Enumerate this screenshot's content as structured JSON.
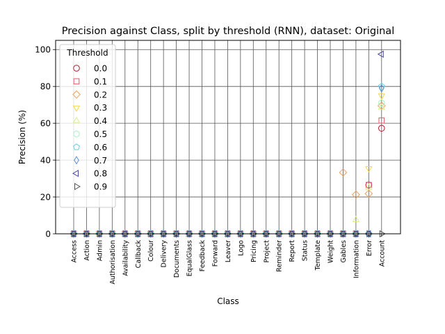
{
  "chart_data": {
    "type": "scatter",
    "title": "Precision against Class, split by threshold (RNN), dataset: Original",
    "xlabel": "Class",
    "ylabel": "Precision (%)",
    "ylim": [
      0,
      105
    ],
    "yticks": [
      0,
      20,
      40,
      60,
      80,
      100
    ],
    "grid": true,
    "legend_title": "Threshold",
    "legend_position": "upper-left",
    "categories": [
      "Access",
      "Action",
      "Admin",
      "Authorisation",
      "Availability",
      "Callback",
      "Colour",
      "Delivery",
      "Documents",
      "EqualGlass",
      "Feedback",
      "Forward",
      "Leaver",
      "Logo",
      "Pricing",
      "Project",
      "Reminder",
      "Report",
      "Status",
      "Template",
      "Weight",
      "Gables",
      "Information",
      "Error",
      "Account"
    ],
    "series": [
      {
        "name": "0.0",
        "marker": "circle",
        "color": "#b2182b",
        "values": [
          0,
          0,
          0,
          0,
          0,
          0,
          0,
          0,
          0,
          0,
          0,
          0,
          0,
          0,
          0,
          0,
          0,
          0,
          0,
          0,
          0,
          0,
          0,
          26.5,
          57.3
        ]
      },
      {
        "name": "0.1",
        "marker": "square",
        "color": "#e8556b",
        "values": [
          0,
          0,
          0,
          0,
          0,
          0,
          0,
          0,
          0,
          0,
          0,
          0,
          0,
          0,
          0,
          0,
          0,
          0,
          0,
          0,
          0,
          0,
          0,
          26.5,
          61.5
        ]
      },
      {
        "name": "0.2",
        "marker": "diamond",
        "color": "#f0a058",
        "values": [
          0,
          0,
          0,
          0,
          0,
          0,
          0,
          0,
          0,
          0,
          0,
          0,
          0,
          0,
          0,
          0,
          0,
          0,
          0,
          0,
          0,
          33.3,
          21.3,
          21.8,
          69.5
        ]
      },
      {
        "name": "0.3",
        "marker": "triangle-down",
        "color": "#f5d83a",
        "values": [
          0,
          0,
          0,
          0,
          0,
          0,
          0,
          0,
          0,
          0,
          0,
          0,
          0,
          0,
          0,
          0,
          0,
          0,
          0,
          0,
          0,
          0,
          0,
          35.5,
          75.0
        ]
      },
      {
        "name": "0.4",
        "marker": "triangle-up",
        "color": "#d9ef8b",
        "values": [
          0,
          0,
          0,
          0,
          0,
          0,
          0,
          0,
          0,
          0,
          0,
          0,
          0,
          0,
          0,
          0,
          0,
          0,
          0,
          0,
          0,
          0,
          7.5,
          25.0,
          68.5
        ]
      },
      {
        "name": "0.5",
        "marker": "hexagon",
        "color": "#a6f0c6",
        "values": [
          0,
          0,
          0,
          0,
          0,
          0,
          0,
          0,
          0,
          0,
          0,
          0,
          0,
          0,
          0,
          0,
          0,
          0,
          0,
          0,
          0,
          0,
          0,
          0,
          71.0
        ]
      },
      {
        "name": "0.6",
        "marker": "pentagon",
        "color": "#5fd0e8",
        "values": [
          0,
          0,
          0,
          0,
          0,
          0,
          0,
          0,
          0,
          0,
          0,
          0,
          0,
          0,
          0,
          0,
          0,
          0,
          0,
          0,
          0,
          0,
          0,
          0,
          80.0
        ]
      },
      {
        "name": "0.7",
        "marker": "thin-diamond",
        "color": "#5b8ed8",
        "values": [
          0,
          0,
          0,
          0,
          0,
          0,
          0,
          0,
          0,
          0,
          0,
          0,
          0,
          0,
          0,
          0,
          0,
          0,
          0,
          0,
          0,
          0,
          0,
          0,
          79.0
        ]
      },
      {
        "name": "0.8",
        "marker": "triangle-left",
        "color": "#4a47a3",
        "values": [
          0,
          0,
          0,
          0,
          0,
          0,
          0,
          0,
          0,
          0,
          0,
          0,
          0,
          0,
          0,
          0,
          0,
          0,
          0,
          0,
          0,
          0,
          0,
          0,
          97.5
        ]
      },
      {
        "name": "0.9",
        "marker": "triangle-right",
        "color": "#555555",
        "values": [
          0,
          0,
          0,
          0,
          0,
          0,
          0,
          0,
          0,
          0,
          0,
          0,
          0,
          0,
          0,
          0,
          0,
          0,
          0,
          0,
          0,
          0,
          0,
          0,
          0
        ]
      }
    ]
  }
}
